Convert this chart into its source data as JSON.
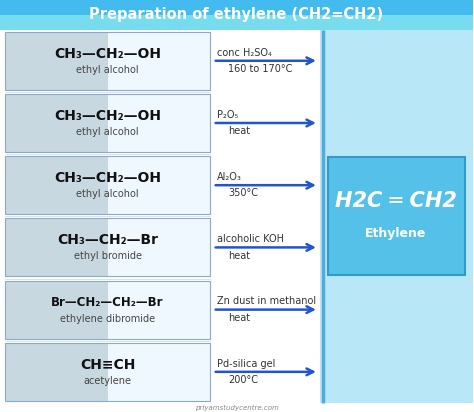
{
  "title": "Preparation of ethylene (CH2=CH2)",
  "title_color": "#ffffff",
  "title_bg_top": "#55ccee",
  "title_bg_bot": "#88ddee",
  "bg_color": "#ffffff",
  "right_bg_color": "#b8e8f8",
  "reactant_box_bg_left": "#c8d8e0",
  "reactant_box_bg_right": "#f0f8ff",
  "reactant_box_edge": "#88aacc",
  "product_box_bg": "#55c0e8",
  "product_box_edge": "#3399cc",
  "arrow_color": "#2255cc",
  "divider_color": "#55aadd",
  "rows": [
    {
      "formula": "CH₃—CH₂—OH",
      "name": "ethyl alcohol",
      "condition_line1": "conc H₂SO₄",
      "condition_line2": "160 to 170°C"
    },
    {
      "formula": "CH₃—CH₂—OH",
      "name": "ethyl alcohol",
      "condition_line1": "P₂O₅",
      "condition_line2": "heat"
    },
    {
      "formula": "CH₃—CH₂—OH",
      "name": "ethyl alcohol",
      "condition_line1": "Al₂O₃",
      "condition_line2": "350°C"
    },
    {
      "formula": "CH₃—CH₂—Br",
      "name": "ethyl bromide",
      "condition_line1": "alcoholic KOH",
      "condition_line2": "heat"
    },
    {
      "formula": "Br—CH₂—CH₂—Br",
      "name": "ethylene dibromide",
      "condition_line1": "Zn dust in methanol",
      "condition_line2": "heat"
    },
    {
      "formula": "CH≡CH",
      "name": "acetylene",
      "condition_line1": "Pd-silica gel",
      "condition_line2": "200°C"
    }
  ],
  "product_formula_line1": "H2C",
  "product_formula_eq": "=",
  "product_formula_line2": "CH2",
  "product_name": "Ethylene",
  "watermark": "priyamstudycentre.com",
  "title_fontsize": 10.5,
  "formula_fontsize": 10,
  "name_fontsize": 7,
  "cond_fontsize": 7,
  "product_formula_fontsize": 15,
  "product_name_fontsize": 9
}
